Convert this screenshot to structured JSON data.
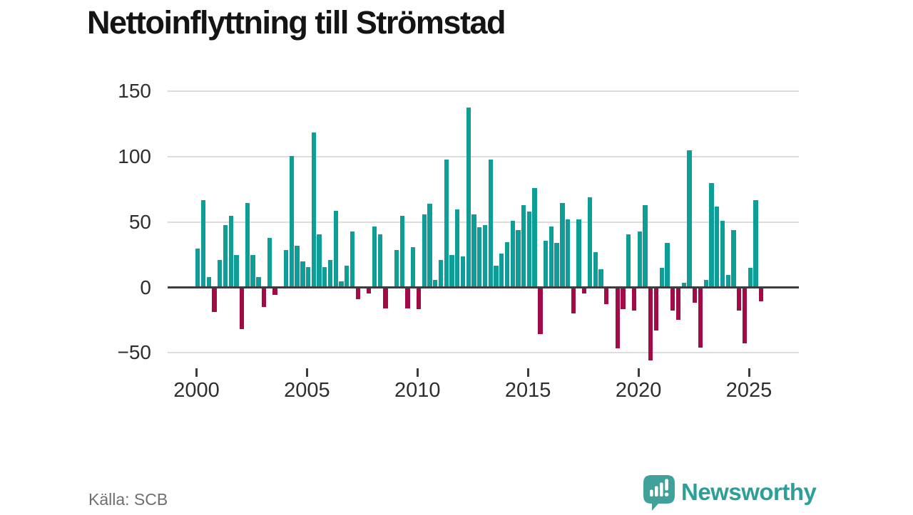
{
  "title": "Nettoinflyttning till Strömstad",
  "source": "Källa: SCB",
  "logo": {
    "text": "Newsworthy",
    "icon": "newsworthy-pin-barchart-icon"
  },
  "colors": {
    "positive": "#0d9e98",
    "negative": "#a20b45",
    "zero_line": "#3c3c3c",
    "grid": "#dcdcdc",
    "axis_text": "#2e2e2e",
    "title_text": "#141414",
    "source_text": "#6f6f6f",
    "logo_teal": "#3fa19a",
    "logo_text": "#2b9f98"
  },
  "chart_data": {
    "type": "bar",
    "title": "Nettoinflyttning till Strömstad",
    "xlabel": "",
    "ylabel": "",
    "ylim": [
      -60,
      155
    ],
    "grid": true,
    "legend": "none",
    "y_ticks": [
      150,
      100,
      50,
      0,
      -50
    ],
    "x_ticks": [
      2000,
      2005,
      2010,
      2015,
      2020,
      2025
    ],
    "frequency": "quarterly",
    "x": [
      "2000Q1",
      "2000Q2",
      "2000Q3",
      "2000Q4",
      "2001Q1",
      "2001Q2",
      "2001Q3",
      "2001Q4",
      "2002Q1",
      "2002Q2",
      "2002Q3",
      "2002Q4",
      "2003Q1",
      "2003Q2",
      "2003Q3",
      "2003Q4",
      "2004Q1",
      "2004Q2",
      "2004Q3",
      "2004Q4",
      "2005Q1",
      "2005Q2",
      "2005Q3",
      "2005Q4",
      "2006Q1",
      "2006Q2",
      "2006Q3",
      "2006Q4",
      "2007Q1",
      "2007Q2",
      "2007Q3",
      "2007Q4",
      "2008Q1",
      "2008Q2",
      "2008Q3",
      "2008Q4",
      "2009Q1",
      "2009Q2",
      "2009Q3",
      "2009Q4",
      "2010Q1",
      "2010Q2",
      "2010Q3",
      "2010Q4",
      "2011Q1",
      "2011Q2",
      "2011Q3",
      "2011Q4",
      "2012Q1",
      "2012Q2",
      "2012Q3",
      "2012Q4",
      "2013Q1",
      "2013Q2",
      "2013Q3",
      "2013Q4",
      "2014Q1",
      "2014Q2",
      "2014Q3",
      "2014Q4",
      "2015Q1",
      "2015Q2",
      "2015Q3",
      "2015Q4",
      "2016Q1",
      "2016Q2",
      "2016Q3",
      "2016Q4",
      "2017Q1",
      "2017Q2",
      "2017Q3",
      "2017Q4",
      "2018Q1",
      "2018Q2",
      "2018Q3",
      "2018Q4",
      "2019Q1",
      "2019Q2",
      "2019Q3",
      "2019Q4",
      "2020Q1",
      "2020Q2",
      "2020Q3",
      "2020Q4",
      "2021Q1",
      "2021Q2",
      "2021Q3",
      "2021Q4",
      "2022Q1",
      "2022Q2",
      "2022Q3",
      "2022Q4",
      "2023Q1",
      "2023Q2",
      "2023Q3",
      "2023Q4",
      "2024Q1",
      "2024Q2",
      "2024Q3",
      "2024Q4",
      "2025Q1",
      "2025Q2",
      "2025Q3"
    ],
    "values": [
      29,
      66,
      7,
      -18,
      20,
      47,
      54,
      24,
      -31,
      64,
      24,
      7,
      -14,
      37,
      -5,
      0,
      28,
      100,
      31,
      19,
      15,
      118,
      40,
      15,
      20,
      58,
      4,
      16,
      42,
      -8,
      0,
      -4,
      46,
      40,
      -15,
      0,
      28,
      54,
      -15,
      30,
      -16,
      55,
      63,
      5,
      20,
      97,
      24,
      59,
      23,
      137,
      55,
      45,
      47,
      97,
      16,
      25,
      34,
      50,
      43,
      62,
      57,
      75,
      -35,
      35,
      46,
      33,
      64,
      51,
      -19,
      51,
      -4,
      68,
      26,
      13,
      -12,
      0,
      -46,
      -16,
      40,
      -17,
      42,
      62,
      -55,
      -32,
      14,
      33,
      -17,
      -24,
      3,
      104,
      -11,
      -45,
      5,
      79,
      61,
      50,
      9,
      43,
      -17,
      -42,
      14,
      66,
      -10
    ]
  }
}
